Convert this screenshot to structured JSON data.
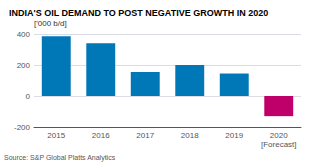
{
  "chart_data": {
    "type": "bar",
    "title": "INDIA'S OIL DEMAND TO POST NEGATIVE GROWTH IN 2020",
    "ylabel": "['000 b/d]",
    "annotations": [
      "Source: S&P Global Platts Analytics"
    ],
    "categories": [
      "2015",
      "2016",
      "2017",
      "2018",
      "2019",
      "2020\n[Forecast]"
    ],
    "values": [
      385,
      340,
      155,
      200,
      145,
      -130
    ],
    "colors": [
      "#0077b6",
      "#0077b6",
      "#0077b6",
      "#0077b6",
      "#0077b6",
      "#c0006a"
    ],
    "ylim": [
      -200,
      400
    ],
    "yticks": [
      -200,
      0,
      200,
      400
    ],
    "grid": true
  }
}
